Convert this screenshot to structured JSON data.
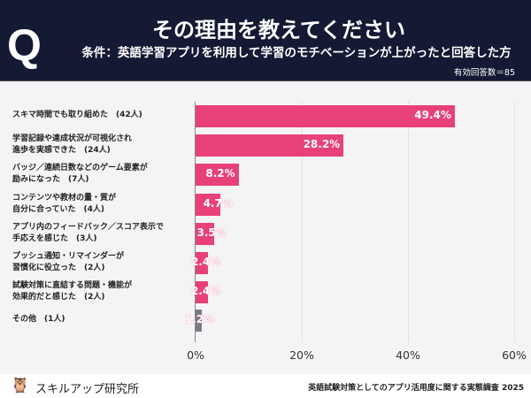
{
  "header": {
    "q": "Q",
    "title": "その理由を教えてください",
    "subtitle": "条件：英語学習アプリを利用して学習のモチベーションが上がったと回答した方",
    "n": "有効回答数＝85"
  },
  "colors": {
    "bar": "#e8407a",
    "other": "#7b7b82",
    "header": "#141a33"
  },
  "chart_data": {
    "type": "bar",
    "orientation": "horizontal",
    "categories": [
      "スキマ時間でも取り組めた　(42人)",
      "学習記録や達成状況が可視化され\n進歩を実感できた　(24人)",
      "バッジ／連続日数などのゲーム要素が\n励みになった　(7人)",
      "コンテンツや教材の量・質が\n自分に合っていた　(4人)",
      "アプリ内のフィードバック／スコア表示で\n手応えを感じた　(3人)",
      "プッシュ通知・リマインダーが\n習慣化に役立った　(2人)",
      "試験対策に直結する問題・機能が\n効果的だと感じた　(2人)",
      "その他　(1人)"
    ],
    "values": [
      49.4,
      28.2,
      8.2,
      4.7,
      3.5,
      2.4,
      2.4,
      1.2
    ],
    "value_labels": [
      "49.4%",
      "28.2%",
      "8.2%",
      "4.7%",
      "3.5%",
      "2.4%",
      "2.4%",
      "1.2%"
    ],
    "xlim": [
      0,
      60
    ],
    "ticks": [
      "0%",
      "20%",
      "40%",
      "60%"
    ],
    "tick_values": [
      0,
      20,
      40,
      60
    ]
  },
  "footer": {
    "brand": "スキルアップ研究所",
    "source": "英語試験対策としてのアプリ活用度に関する実態調査 2025"
  }
}
